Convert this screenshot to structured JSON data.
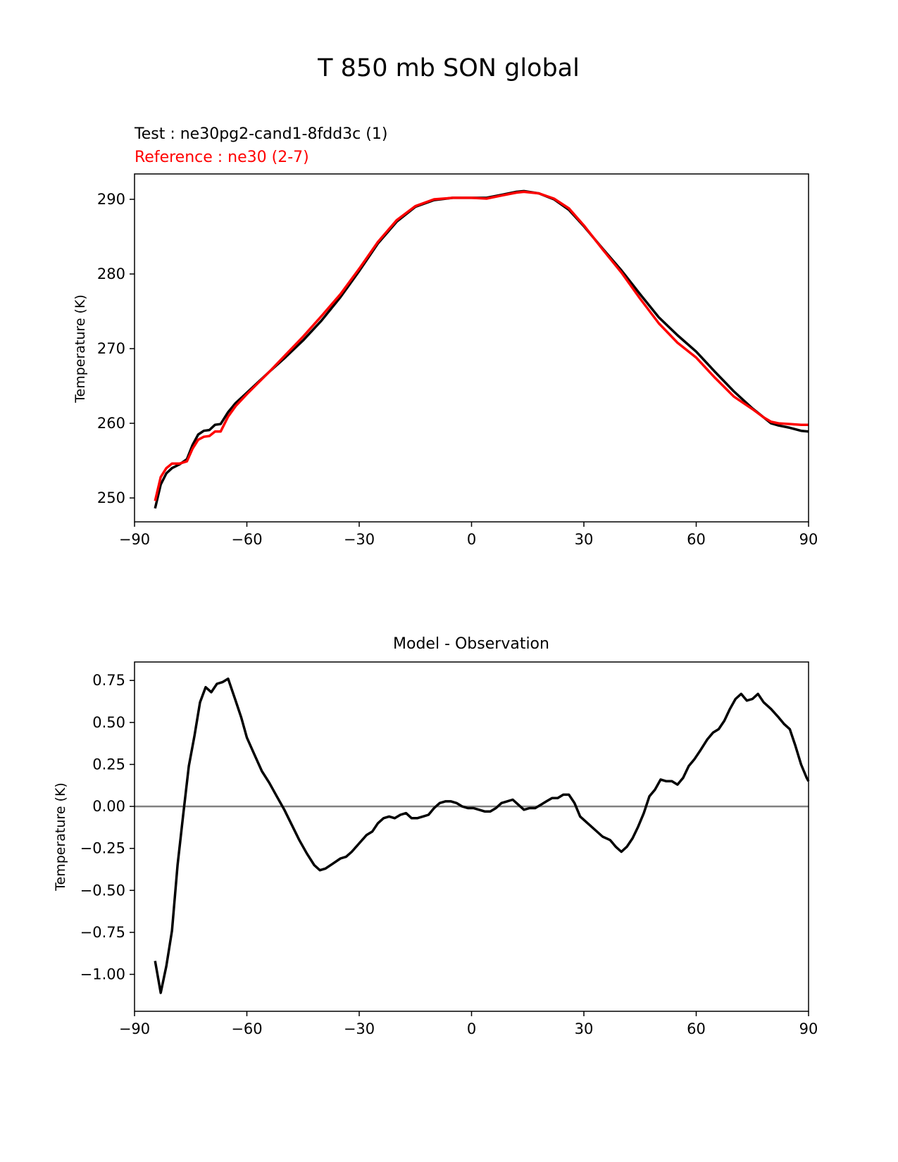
{
  "figure": {
    "title": "T 850 mb SON global"
  },
  "colors": {
    "test": "#000000",
    "reference": "#ff0000",
    "zero_line": "#808080",
    "axes": "#000000",
    "background": "#ffffff"
  },
  "chart_data": [
    {
      "type": "line",
      "title": "",
      "legend_text": [
        "Test : ne30pg2-cand1-8fdd3c (1)",
        "Reference : ne30 (2-7)"
      ],
      "xlabel": "",
      "ylabel": "Temperature (K)",
      "xlim": [
        -90,
        90
      ],
      "ylim": [
        246.8,
        293.4
      ],
      "xticks": [
        -90,
        -60,
        -30,
        0,
        30,
        60,
        90
      ],
      "xtick_labels": [
        "−90",
        "−60",
        "−30",
        "0",
        "30",
        "60",
        "90"
      ],
      "yticks": [
        250,
        260,
        270,
        280,
        290
      ],
      "ytick_labels": [
        "250",
        "260",
        "270",
        "280",
        "290"
      ],
      "grid": false,
      "legend_placement": "above plot, left",
      "series": [
        {
          "name": "Test : ne30pg2-cand1-8fdd3c (1)",
          "color": "#000000",
          "points": [
            [
              -84.5,
              248.6
            ],
            [
              -83,
              251.8
            ],
            [
              -81.5,
              253.3
            ],
            [
              -80,
              254.0
            ],
            [
              -78,
              254.5
            ],
            [
              -76,
              255.2
            ],
            [
              -74.5,
              257.1
            ],
            [
              -73,
              258.5
            ],
            [
              -71.5,
              259.0
            ],
            [
              -70,
              259.1
            ],
            [
              -68.5,
              259.8
            ],
            [
              -67,
              259.9
            ],
            [
              -65,
              261.5
            ],
            [
              -63,
              262.7
            ],
            [
              -60,
              264.1
            ],
            [
              -57,
              265.5
            ],
            [
              -54,
              266.9
            ],
            [
              -50,
              268.7
            ],
            [
              -45,
              271.1
            ],
            [
              -40,
              273.8
            ],
            [
              -35,
              276.9
            ],
            [
              -30,
              280.4
            ],
            [
              -25,
              284.1
            ],
            [
              -20,
              287.0
            ],
            [
              -15,
              289.0
            ],
            [
              -10,
              289.9
            ],
            [
              -5,
              290.2
            ],
            [
              0,
              290.2
            ],
            [
              4,
              290.2
            ],
            [
              8,
              290.6
            ],
            [
              12,
              291.0
            ],
            [
              14,
              291.1
            ],
            [
              18,
              290.8
            ],
            [
              22,
              290.0
            ],
            [
              26,
              288.6
            ],
            [
              30,
              286.4
            ],
            [
              35,
              283.4
            ],
            [
              40,
              280.5
            ],
            [
              45,
              277.3
            ],
            [
              50,
              274.2
            ],
            [
              55,
              271.8
            ],
            [
              60,
              269.6
            ],
            [
              65,
              266.9
            ],
            [
              70,
              264.3
            ],
            [
              75,
              262.0
            ],
            [
              78,
              260.8
            ],
            [
              80,
              260.0
            ],
            [
              82,
              259.7
            ],
            [
              85,
              259.4
            ],
            [
              88,
              259.0
            ],
            [
              90,
              258.9
            ]
          ]
        },
        {
          "name": "Reference : ne30 (2-7)",
          "color": "#ff0000",
          "points": [
            [
              -84.5,
              249.6
            ],
            [
              -83,
              252.8
            ],
            [
              -81.5,
              254.0
            ],
            [
              -80,
              254.6
            ],
            [
              -78,
              254.6
            ],
            [
              -76,
              254.9
            ],
            [
              -74.5,
              256.6
            ],
            [
              -73,
              257.8
            ],
            [
              -71.5,
              258.2
            ],
            [
              -70,
              258.3
            ],
            [
              -68.5,
              258.9
            ],
            [
              -67,
              258.9
            ],
            [
              -65,
              260.9
            ],
            [
              -63,
              262.3
            ],
            [
              -60,
              263.9
            ],
            [
              -57,
              265.4
            ],
            [
              -54,
              266.9
            ],
            [
              -50,
              269.0
            ],
            [
              -45,
              271.6
            ],
            [
              -40,
              274.4
            ],
            [
              -35,
              277.3
            ],
            [
              -30,
              280.7
            ],
            [
              -25,
              284.3
            ],
            [
              -20,
              287.2
            ],
            [
              -15,
              289.1
            ],
            [
              -10,
              290.0
            ],
            [
              -5,
              290.2
            ],
            [
              0,
              290.2
            ],
            [
              4,
              290.1
            ],
            [
              8,
              290.5
            ],
            [
              12,
              290.9
            ],
            [
              14,
              291.0
            ],
            [
              18,
              290.8
            ],
            [
              22,
              290.1
            ],
            [
              26,
              288.8
            ],
            [
              30,
              286.5
            ],
            [
              35,
              283.3
            ],
            [
              40,
              280.2
            ],
            [
              45,
              276.7
            ],
            [
              50,
              273.4
            ],
            [
              55,
              270.8
            ],
            [
              60,
              268.8
            ],
            [
              65,
              266.1
            ],
            [
              70,
              263.6
            ],
            [
              75,
              261.9
            ],
            [
              78,
              260.8
            ],
            [
              80,
              260.2
            ],
            [
              82,
              260.0
            ],
            [
              85,
              259.9
            ],
            [
              88,
              259.8
            ],
            [
              90,
              259.8
            ]
          ]
        }
      ]
    },
    {
      "type": "line",
      "title": "Model - Observation",
      "xlabel": "",
      "ylabel": "Temperature (K)",
      "xlim": [
        -90,
        90
      ],
      "ylim": [
        -1.22,
        0.86
      ],
      "xticks": [
        -90,
        -60,
        -30,
        0,
        30,
        60,
        90
      ],
      "xtick_labels": [
        "−90",
        "−60",
        "−30",
        "0",
        "30",
        "60",
        "90"
      ],
      "yticks": [
        -1.0,
        -0.75,
        -0.5,
        -0.25,
        0.0,
        0.25,
        0.5,
        0.75
      ],
      "ytick_labels": [
        "−1.00",
        "−0.75",
        "−0.50",
        "−0.25",
        "0.00",
        "0.25",
        "0.50",
        "0.75"
      ],
      "grid": false,
      "reference_line": {
        "y": 0,
        "color": "#808080"
      },
      "series": [
        {
          "color": "#000000",
          "points": [
            [
              -84.5,
              -0.92
            ],
            [
              -83,
              -1.11
            ],
            [
              -81.5,
              -0.95
            ],
            [
              -80,
              -0.74
            ],
            [
              -78.5,
              -0.35
            ],
            [
              -77,
              -0.05
            ],
            [
              -75.5,
              0.24
            ],
            [
              -74,
              0.42
            ],
            [
              -72.5,
              0.62
            ],
            [
              -71,
              0.71
            ],
            [
              -69.5,
              0.68
            ],
            [
              -68,
              0.73
            ],
            [
              -66.5,
              0.74
            ],
            [
              -65,
              0.76
            ],
            [
              -63,
              0.63
            ],
            [
              -61.5,
              0.53
            ],
            [
              -60,
              0.41
            ],
            [
              -58,
              0.31
            ],
            [
              -56,
              0.21
            ],
            [
              -54,
              0.14
            ],
            [
              -52,
              0.06
            ],
            [
              -50,
              -0.02
            ],
            [
              -48,
              -0.11
            ],
            [
              -46,
              -0.2
            ],
            [
              -44,
              -0.28
            ],
            [
              -42,
              -0.35
            ],
            [
              -40.5,
              -0.38
            ],
            [
              -39,
              -0.37
            ],
            [
              -37,
              -0.34
            ],
            [
              -35,
              -0.31
            ],
            [
              -33.5,
              -0.3
            ],
            [
              -32,
              -0.27
            ],
            [
              -30,
              -0.22
            ],
            [
              -28,
              -0.17
            ],
            [
              -26.5,
              -0.15
            ],
            [
              -25,
              -0.1
            ],
            [
              -23.5,
              -0.07
            ],
            [
              -22,
              -0.06
            ],
            [
              -20.5,
              -0.07
            ],
            [
              -19,
              -0.05
            ],
            [
              -17.5,
              -0.04
            ],
            [
              -16,
              -0.07
            ],
            [
              -14.5,
              -0.07
            ],
            [
              -13,
              -0.06
            ],
            [
              -11.5,
              -0.05
            ],
            [
              -10,
              -0.01
            ],
            [
              -8.5,
              0.02
            ],
            [
              -7,
              0.03
            ],
            [
              -5.5,
              0.03
            ],
            [
              -4,
              0.02
            ],
            [
              -2.5,
              0.0
            ],
            [
              -1,
              -0.01
            ],
            [
              0.5,
              -0.01
            ],
            [
              2,
              -0.02
            ],
            [
              3.5,
              -0.03
            ],
            [
              5,
              -0.03
            ],
            [
              6.5,
              -0.01
            ],
            [
              8,
              0.02
            ],
            [
              9.5,
              0.03
            ],
            [
              11,
              0.04
            ],
            [
              12.5,
              0.01
            ],
            [
              14,
              -0.02
            ],
            [
              15.5,
              -0.01
            ],
            [
              17,
              -0.01
            ],
            [
              18.5,
              0.01
            ],
            [
              20,
              0.03
            ],
            [
              21.5,
              0.05
            ],
            [
              23,
              0.05
            ],
            [
              24.5,
              0.07
            ],
            [
              26,
              0.07
            ],
            [
              27.5,
              0.02
            ],
            [
              29,
              -0.06
            ],
            [
              31,
              -0.1
            ],
            [
              33,
              -0.14
            ],
            [
              35,
              -0.18
            ],
            [
              37,
              -0.2
            ],
            [
              38.5,
              -0.24
            ],
            [
              40,
              -0.27
            ],
            [
              41.5,
              -0.24
            ],
            [
              43,
              -0.19
            ],
            [
              44.5,
              -0.12
            ],
            [
              46,
              -0.04
            ],
            [
              47.5,
              0.06
            ],
            [
              49,
              0.1
            ],
            [
              50.5,
              0.16
            ],
            [
              52,
              0.15
            ],
            [
              53.5,
              0.15
            ],
            [
              55,
              0.13
            ],
            [
              56.5,
              0.17
            ],
            [
              58,
              0.24
            ],
            [
              59.5,
              0.28
            ],
            [
              61,
              0.33
            ],
            [
              63,
              0.4
            ],
            [
              64.5,
              0.44
            ],
            [
              66,
              0.46
            ],
            [
              67.5,
              0.51
            ],
            [
              69,
              0.58
            ],
            [
              70.5,
              0.64
            ],
            [
              72,
              0.67
            ],
            [
              73.5,
              0.63
            ],
            [
              75,
              0.64
            ],
            [
              76.5,
              0.67
            ],
            [
              78,
              0.62
            ],
            [
              80,
              0.58
            ],
            [
              82,
              0.53
            ],
            [
              83.5,
              0.49
            ],
            [
              85,
              0.46
            ],
            [
              86.5,
              0.36
            ],
            [
              88,
              0.25
            ],
            [
              89.5,
              0.17
            ],
            [
              90,
              0.15
            ]
          ]
        }
      ]
    }
  ]
}
